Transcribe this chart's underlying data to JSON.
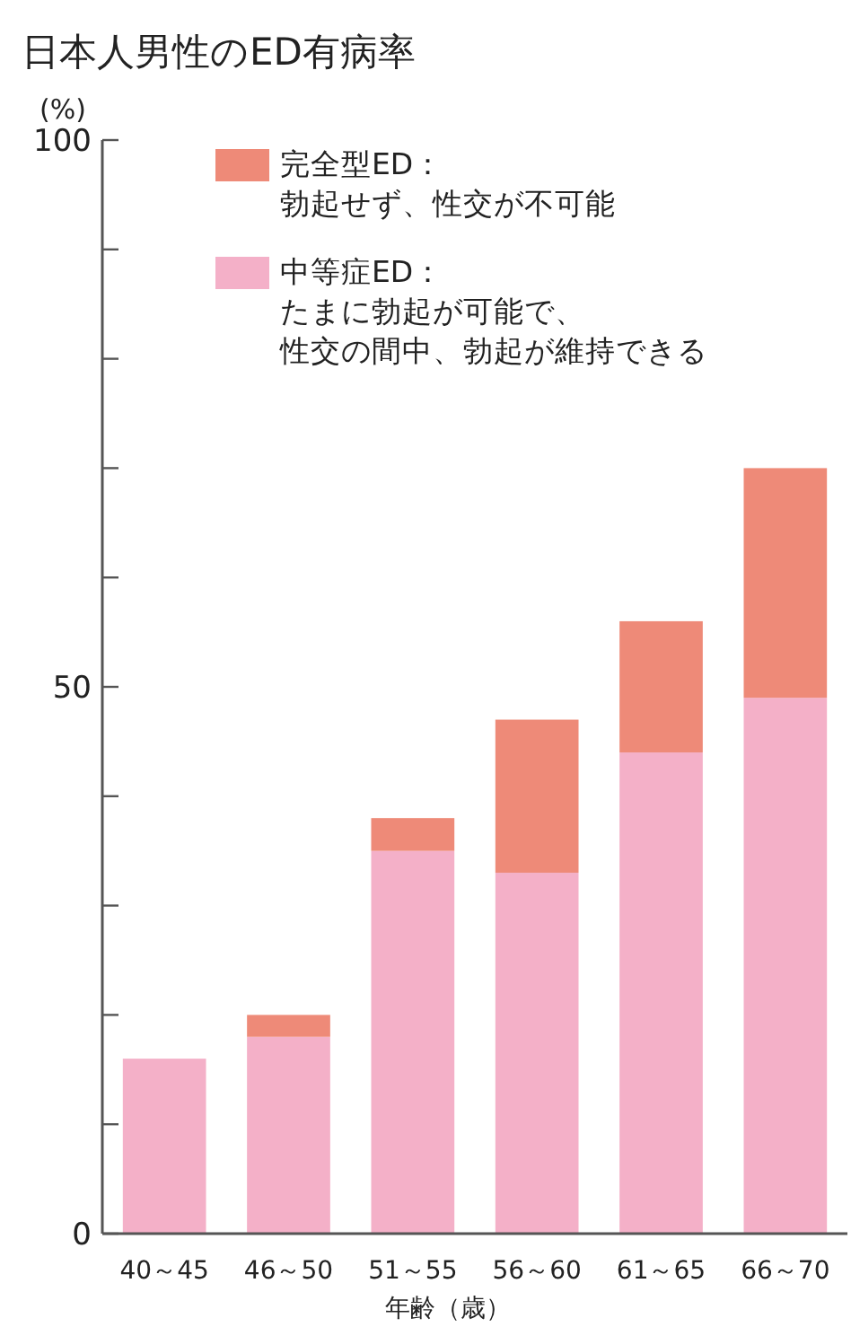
{
  "chart_data": {
    "type": "bar",
    "title": "日本人男性のED有病率",
    "xlabel": "年齢（歳）",
    "ylabel": "(%)",
    "categories": [
      "40～45",
      "46～50",
      "51～55",
      "56～60",
      "61～65",
      "66～70"
    ],
    "stacked": true,
    "legend": "top left",
    "grid": false,
    "ylim": [
      0,
      100
    ],
    "yticks": [
      0,
      {
        "value": 10,
        "label": null
      },
      {
        "value": 20,
        "label": null
      },
      {
        "value": 30,
        "label": null
      },
      {
        "value": 40,
        "label": null
      },
      50,
      {
        "value": 60,
        "label": null
      },
      {
        "value": 70,
        "label": null
      },
      {
        "value": 80,
        "label": null
      },
      {
        "value": 90,
        "label": null
      },
      100
    ],
    "series": [
      {
        "name": "中等症ED：たまに勃起が可能で、性交の間中、勃起が維持できる",
        "color": "#f4b0c8",
        "values": [
          16,
          18,
          35,
          33,
          44,
          49
        ]
      },
      {
        "name": "完全型ED：勃起せず、性交が不可能",
        "color": "#ee8a78",
        "values": [
          0,
          2,
          3,
          14,
          12,
          21
        ]
      }
    ]
  }
}
